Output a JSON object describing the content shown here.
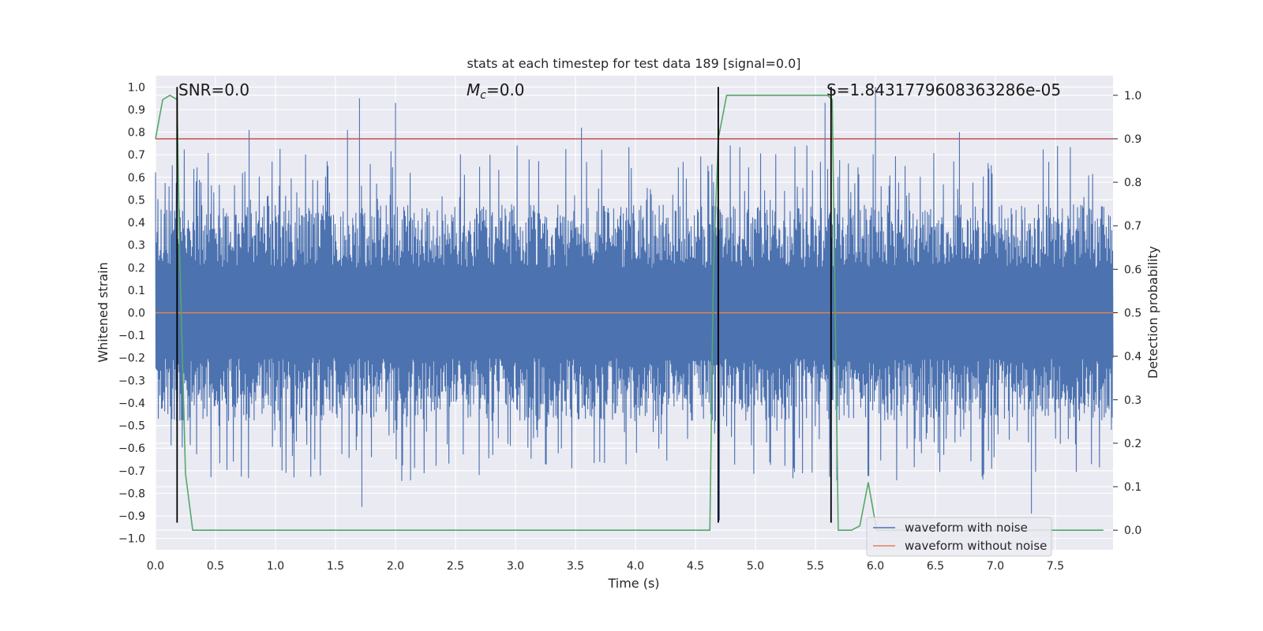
{
  "chart_data": {
    "type": "line",
    "title": "stats at each timestep for test data 189 [signal=0.0]",
    "xlabel": "Time (s)",
    "ylabel_left": "Whitened strain",
    "ylabel_right": "Detection probability",
    "xlim": [
      0.0,
      7.98
    ],
    "ylim_left": [
      -1.05,
      1.05
    ],
    "ylim_right": [
      -0.045,
      1.045
    ],
    "x_ticks": [
      0.0,
      0.5,
      1.0,
      1.5,
      2.0,
      2.5,
      3.0,
      3.5,
      4.0,
      4.5,
      5.0,
      5.5,
      6.0,
      6.5,
      7.0,
      7.5
    ],
    "x_tick_labels": [
      "0.0",
      "0.5",
      "1.0",
      "1.5",
      "2.0",
      "2.5",
      "3.0",
      "3.5",
      "4.0",
      "4.5",
      "5.0",
      "5.5",
      "6.0",
      "6.5",
      "7.0",
      "7.5"
    ],
    "y_left_ticks": [
      1.0,
      0.9,
      0.8,
      0.7,
      0.6,
      0.5,
      0.4,
      0.3,
      0.2,
      0.1,
      0.0,
      -0.1,
      -0.2,
      -0.3,
      -0.4,
      -0.5,
      -0.6,
      -0.7,
      -0.8,
      -0.9,
      -1.0
    ],
    "y_left_tick_labels": [
      "1.0",
      "0.9",
      "0.8",
      "0.7",
      "0.6",
      "0.5",
      "0.4",
      "0.3",
      "0.2",
      "0.1",
      "0.0",
      "−0.1",
      "−0.2",
      "−0.3",
      "−0.4",
      "−0.5",
      "−0.6",
      "−0.7",
      "−0.8",
      "−0.9",
      "−1.0"
    ],
    "y_right_ticks": [
      1.0,
      0.9,
      0.8,
      0.7,
      0.6,
      0.5,
      0.4,
      0.3,
      0.2,
      0.1,
      0.0
    ],
    "y_right_tick_labels": [
      "1.0",
      "0.9",
      "0.8",
      "0.7",
      "0.6",
      "0.5",
      "0.4",
      "0.3",
      "0.2",
      "0.1",
      "0.0"
    ],
    "annotations": [
      {
        "text": "SNR=0.0",
        "x": 0.19,
        "y": 1.0
      },
      {
        "text": "M_c=0.0",
        "x": 2.6,
        "y": 1.0,
        "math": true
      },
      {
        "text": "S=1.8431779608363286e-05",
        "x": 5.6,
        "y": 1.0
      }
    ],
    "series": [
      {
        "name": "waveform with noise",
        "color": "#4c72b0",
        "axis": "left",
        "description": "dense noisy whitened strain, amplitude mostly within about -0.8 to 0.8, peaks near 1.0",
        "peaks": [
          {
            "x": 0.78,
            "y": 0.81
          },
          {
            "x": 1.6,
            "y": 0.81
          },
          {
            "x": 1.7,
            "y": 0.95
          },
          {
            "x": 2.0,
            "y": 0.93
          },
          {
            "x": 3.55,
            "y": 0.82
          },
          {
            "x": 5.58,
            "y": 0.93
          },
          {
            "x": 6.0,
            "y": 1.0
          },
          {
            "x": 6.7,
            "y": 0.8
          },
          {
            "x": 1.72,
            "y": -0.86
          },
          {
            "x": 4.7,
            "y": -0.92
          },
          {
            "x": 7.3,
            "y": -0.89
          }
        ]
      },
      {
        "name": "waveform without noise",
        "color": "#dd8452",
        "axis": "left",
        "x": [
          0.0,
          7.98
        ],
        "y": [
          0.0,
          0.0
        ]
      },
      {
        "name": "detection probability",
        "color": "#55a868",
        "axis": "right",
        "in_legend": false,
        "x": [
          0.0,
          0.06,
          0.12,
          0.18,
          0.2,
          0.25,
          0.31,
          1.0,
          2.0,
          3.0,
          4.0,
          4.62,
          4.65,
          4.69,
          4.76,
          5.0,
          5.5,
          5.6,
          5.64,
          5.69,
          5.8,
          5.87,
          5.94,
          6.01,
          6.5,
          7.0,
          7.5,
          7.9
        ],
        "y": [
          0.9,
          0.99,
          1.0,
          0.99,
          0.65,
          0.13,
          0.0,
          0.0,
          0.0,
          0.0,
          0.0,
          0.0,
          0.6,
          0.9,
          1.0,
          1.0,
          1.0,
          1.0,
          0.99,
          0.0,
          0.0,
          0.01,
          0.11,
          0.0,
          0.0,
          0.0,
          0.0,
          0.0
        ]
      }
    ],
    "threshold_line": {
      "axis": "right",
      "y": 0.9,
      "color": "#c44e52"
    },
    "event_lines": {
      "color": "#000000",
      "x": [
        0.18,
        4.69,
        5.63
      ],
      "y_top_left": 1.0,
      "y_bottom_left": -0.93
    },
    "legend": {
      "location": "lower right",
      "entries": [
        "waveform with noise",
        "waveform without noise"
      ]
    },
    "grid": true
  }
}
